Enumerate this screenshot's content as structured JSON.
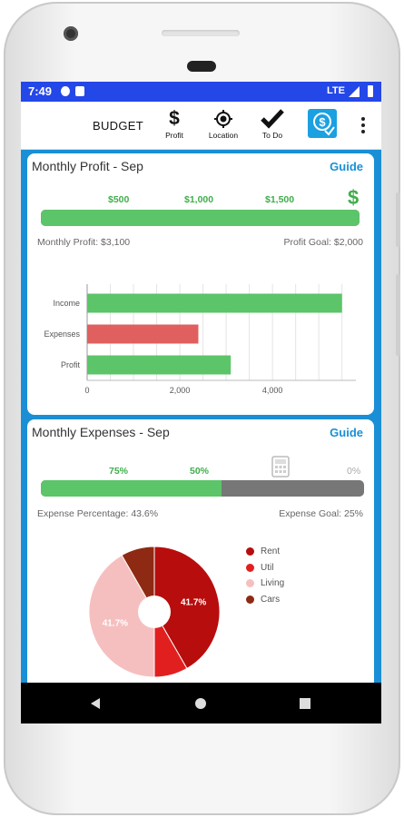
{
  "status": {
    "time": "7:49",
    "network": "LTE"
  },
  "toolbar": {
    "title": "BUDGET",
    "items": [
      {
        "label": "Profit",
        "icon": "dollar-icon"
      },
      {
        "label": "Location",
        "icon": "location-target-icon"
      },
      {
        "label": "To Do",
        "icon": "checkmark-icon"
      }
    ],
    "app_icon": "dollar-calculator-app-icon",
    "menu_icon": "more-vert-icon"
  },
  "profit_card": {
    "title": "Monthly Profit - Sep",
    "guide_label": "Guide",
    "ticks": [
      "$500",
      "$1,000",
      "$1,500"
    ],
    "dollar_symbol": "$",
    "progress_fraction": 1.0,
    "progress_color": "#5cc469",
    "profit_text": "Monthly Profit: $3,100",
    "goal_text": "Profit Goal: $2,000"
  },
  "chart_data": [
    {
      "type": "bar",
      "orientation": "horizontal",
      "categories": [
        "Income",
        "Expenses",
        "Profit"
      ],
      "values": [
        5500,
        2400,
        3100
      ],
      "colors": [
        "#5cc469",
        "#e06060",
        "#5cc469"
      ],
      "xlim": [
        0,
        5800
      ],
      "xticks": [
        0,
        2000,
        4000
      ],
      "xtick_labels": [
        "0",
        "2,000",
        "4,000"
      ],
      "grid": true
    },
    {
      "type": "pie",
      "style": "donut",
      "categories": [
        "Rent",
        "Util",
        "Living",
        "Cars"
      ],
      "values": [
        41.7,
        8.3,
        41.7,
        8.3
      ],
      "colors": [
        "#b80d0d",
        "#e21f1f",
        "#f6bfbf",
        "#8e2a13"
      ],
      "data_labels": [
        "41.7%",
        "",
        "41.7%",
        ""
      ],
      "legend_position": "right"
    }
  ],
  "expenses_card": {
    "title": "Monthly Expenses - Sep",
    "guide_label": "Guide",
    "ticks": [
      "75%",
      "50%"
    ],
    "zero_label": "0%",
    "progress_fraction": 0.56,
    "expense_text": "Expense Percentage: 43.6%",
    "goal_text": "Expense Goal: 25%",
    "calculator_icon": "calculator-icon"
  },
  "fab": {
    "add_label": "+",
    "remove_label": "—"
  },
  "nav": {
    "back": "back-icon",
    "home": "home-icon",
    "recents": "recents-icon"
  }
}
